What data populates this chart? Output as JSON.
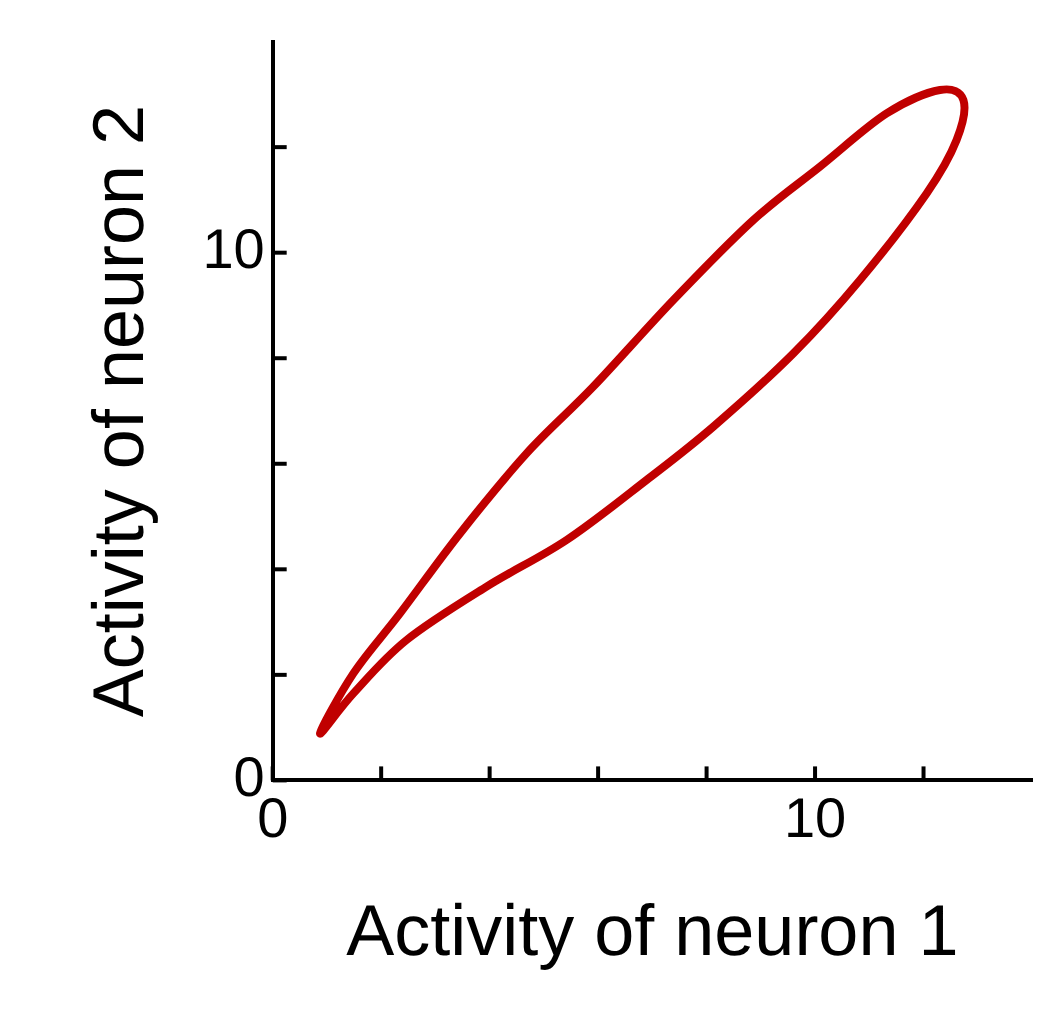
{
  "chart_data": {
    "type": "line",
    "xlabel": "Activity of neuron 1",
    "ylabel": "Activity of neuron 2",
    "xlim": [
      0,
      14
    ],
    "ylim": [
      0,
      14
    ],
    "xticks": [
      0,
      {
        "value": 2,
        "label": null
      },
      {
        "value": 4,
        "label": null
      },
      {
        "value": 6,
        "label": null
      },
      {
        "value": 8,
        "label": null
      },
      10,
      {
        "value": 12,
        "label": null
      }
    ],
    "yticks": [
      0,
      {
        "value": 2,
        "label": null
      },
      {
        "value": 4,
        "label": null
      },
      {
        "value": 6,
        "label": null
      },
      {
        "value": 8,
        "label": null
      },
      10,
      {
        "value": 12,
        "label": null
      }
    ],
    "grid": false
  }
}
